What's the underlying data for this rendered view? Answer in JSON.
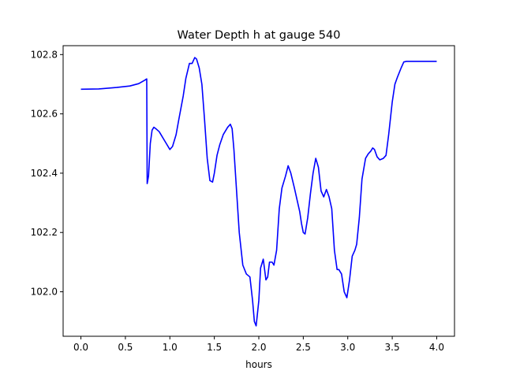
{
  "chart_data": {
    "type": "line",
    "title": "Water Depth h at gauge 540",
    "xlabel": "hours",
    "ylabel": "",
    "xlim": [
      -0.2,
      4.2
    ],
    "ylim": [
      101.85,
      102.83
    ],
    "xticks": [
      0.0,
      0.5,
      1.0,
      1.5,
      2.0,
      2.5,
      3.0,
      3.5,
      4.0
    ],
    "xtick_labels": [
      "0.0",
      "0.5",
      "1.0",
      "1.5",
      "2.0",
      "2.5",
      "3.0",
      "3.5",
      "4.0"
    ],
    "yticks": [
      102.0,
      102.2,
      102.4,
      102.6,
      102.8
    ],
    "ytick_labels": [
      "102.0",
      "102.2",
      "102.4",
      "102.6",
      "102.8"
    ],
    "grid": false,
    "series": [
      {
        "color": "#0000ff",
        "x": [
          0.0,
          0.2,
          0.4,
          0.55,
          0.65,
          0.72,
          0.74,
          0.745,
          0.76,
          0.78,
          0.8,
          0.82,
          0.85,
          0.88,
          0.9,
          0.93,
          0.96,
          1.0,
          1.03,
          1.07,
          1.1,
          1.15,
          1.18,
          1.22,
          1.25,
          1.28,
          1.3,
          1.33,
          1.36,
          1.39,
          1.42,
          1.45,
          1.48,
          1.5,
          1.53,
          1.56,
          1.6,
          1.65,
          1.68,
          1.7,
          1.72,
          1.75,
          1.78,
          1.82,
          1.86,
          1.9,
          1.93,
          1.95,
          1.97,
          2.0,
          2.02,
          2.05,
          2.08,
          2.1,
          2.12,
          2.15,
          2.17,
          2.2,
          2.23,
          2.26,
          2.3,
          2.33,
          2.36,
          2.4,
          2.43,
          2.46,
          2.48,
          2.5,
          2.52,
          2.55,
          2.58,
          2.61,
          2.64,
          2.67,
          2.7,
          2.73,
          2.76,
          2.79,
          2.82,
          2.85,
          2.88,
          2.9,
          2.93,
          2.96,
          2.99,
          3.02,
          3.05,
          3.08,
          3.1,
          3.13,
          3.16,
          3.2,
          3.23,
          3.26,
          3.28,
          3.3,
          3.33,
          3.36,
          3.4,
          3.43,
          3.46,
          3.5,
          3.53,
          3.56,
          3.6,
          3.63,
          3.66,
          3.7,
          3.73,
          3.76,
          3.79,
          3.82,
          3.85,
          3.88,
          3.91,
          3.94,
          3.97,
          4.0
        ],
        "y": [
          102.683,
          102.684,
          102.689,
          102.694,
          102.702,
          102.714,
          102.718,
          102.365,
          102.39,
          102.5,
          102.545,
          102.555,
          102.548,
          102.54,
          102.53,
          102.515,
          102.5,
          102.48,
          102.49,
          102.53,
          102.58,
          102.66,
          102.72,
          102.77,
          102.77,
          102.79,
          102.785,
          102.755,
          102.7,
          102.58,
          102.45,
          102.375,
          102.37,
          102.4,
          102.46,
          102.495,
          102.53,
          102.555,
          102.565,
          102.55,
          102.48,
          102.34,
          102.2,
          102.09,
          102.06,
          102.05,
          101.97,
          101.9,
          101.885,
          101.97,
          102.08,
          102.11,
          102.04,
          102.05,
          102.1,
          102.1,
          102.09,
          102.14,
          102.28,
          102.35,
          102.39,
          102.425,
          102.4,
          102.35,
          102.31,
          102.27,
          102.23,
          102.2,
          102.195,
          102.25,
          102.33,
          102.4,
          102.45,
          102.42,
          102.34,
          102.32,
          102.345,
          102.32,
          102.28,
          102.14,
          102.075,
          102.075,
          102.06,
          102.0,
          101.98,
          102.04,
          102.12,
          102.14,
          102.16,
          102.25,
          102.38,
          102.45,
          102.465,
          102.475,
          102.485,
          102.48,
          102.455,
          102.445,
          102.45,
          102.46,
          102.53,
          102.64,
          102.7,
          102.725,
          102.755,
          102.775,
          102.777,
          102.777,
          102.777,
          102.777,
          102.777,
          102.777,
          102.777,
          102.777,
          102.777,
          102.777,
          102.777,
          102.777
        ]
      }
    ]
  }
}
